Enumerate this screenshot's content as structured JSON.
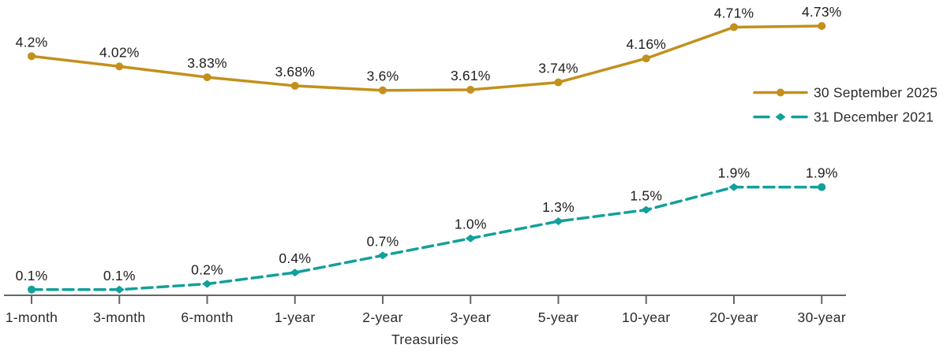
{
  "chart_data": {
    "type": "line",
    "title": "",
    "xlabel": "Treasuries",
    "ylabel": "",
    "ylim": [
      0,
      5.2
    ],
    "grid": false,
    "y_axis_visible": false,
    "legend_position": "right",
    "categories": [
      "1-month",
      "3-month",
      "6-month",
      "1-year",
      "2-year",
      "3-year",
      "5-year",
      "10-year",
      "20-year",
      "30-year"
    ],
    "series": [
      {
        "name": "30 September 2025",
        "values": [
          4.2,
          4.02,
          3.83,
          3.68,
          3.6,
          3.61,
          3.74,
          4.16,
          4.71,
          4.73
        ],
        "point_labels": [
          "4.2%",
          "4.02%",
          "3.83%",
          "3.68%",
          "3.6%",
          "3.61%",
          "3.74%",
          "4.16%",
          "4.71%",
          "4.73%"
        ],
        "color": "#C3901D",
        "line_style": "solid",
        "marker": "circle"
      },
      {
        "name": "31 December 2021",
        "values": [
          0.1,
          0.1,
          0.2,
          0.4,
          0.7,
          1.0,
          1.3,
          1.5,
          1.9,
          1.9
        ],
        "point_labels": [
          "0.1%",
          "0.1%",
          "0.2%",
          "0.4%",
          "0.7%",
          "1.0%",
          "1.3%",
          "1.5%",
          "1.9%",
          "1.9%"
        ],
        "color": "#12A09A",
        "line_style": "dashed",
        "marker": "diamond"
      }
    ]
  },
  "colors": {
    "background": "#ffffff",
    "axis": "#666666",
    "tick_label": "#2B2B2B",
    "data_label": "#1E1E1E"
  }
}
